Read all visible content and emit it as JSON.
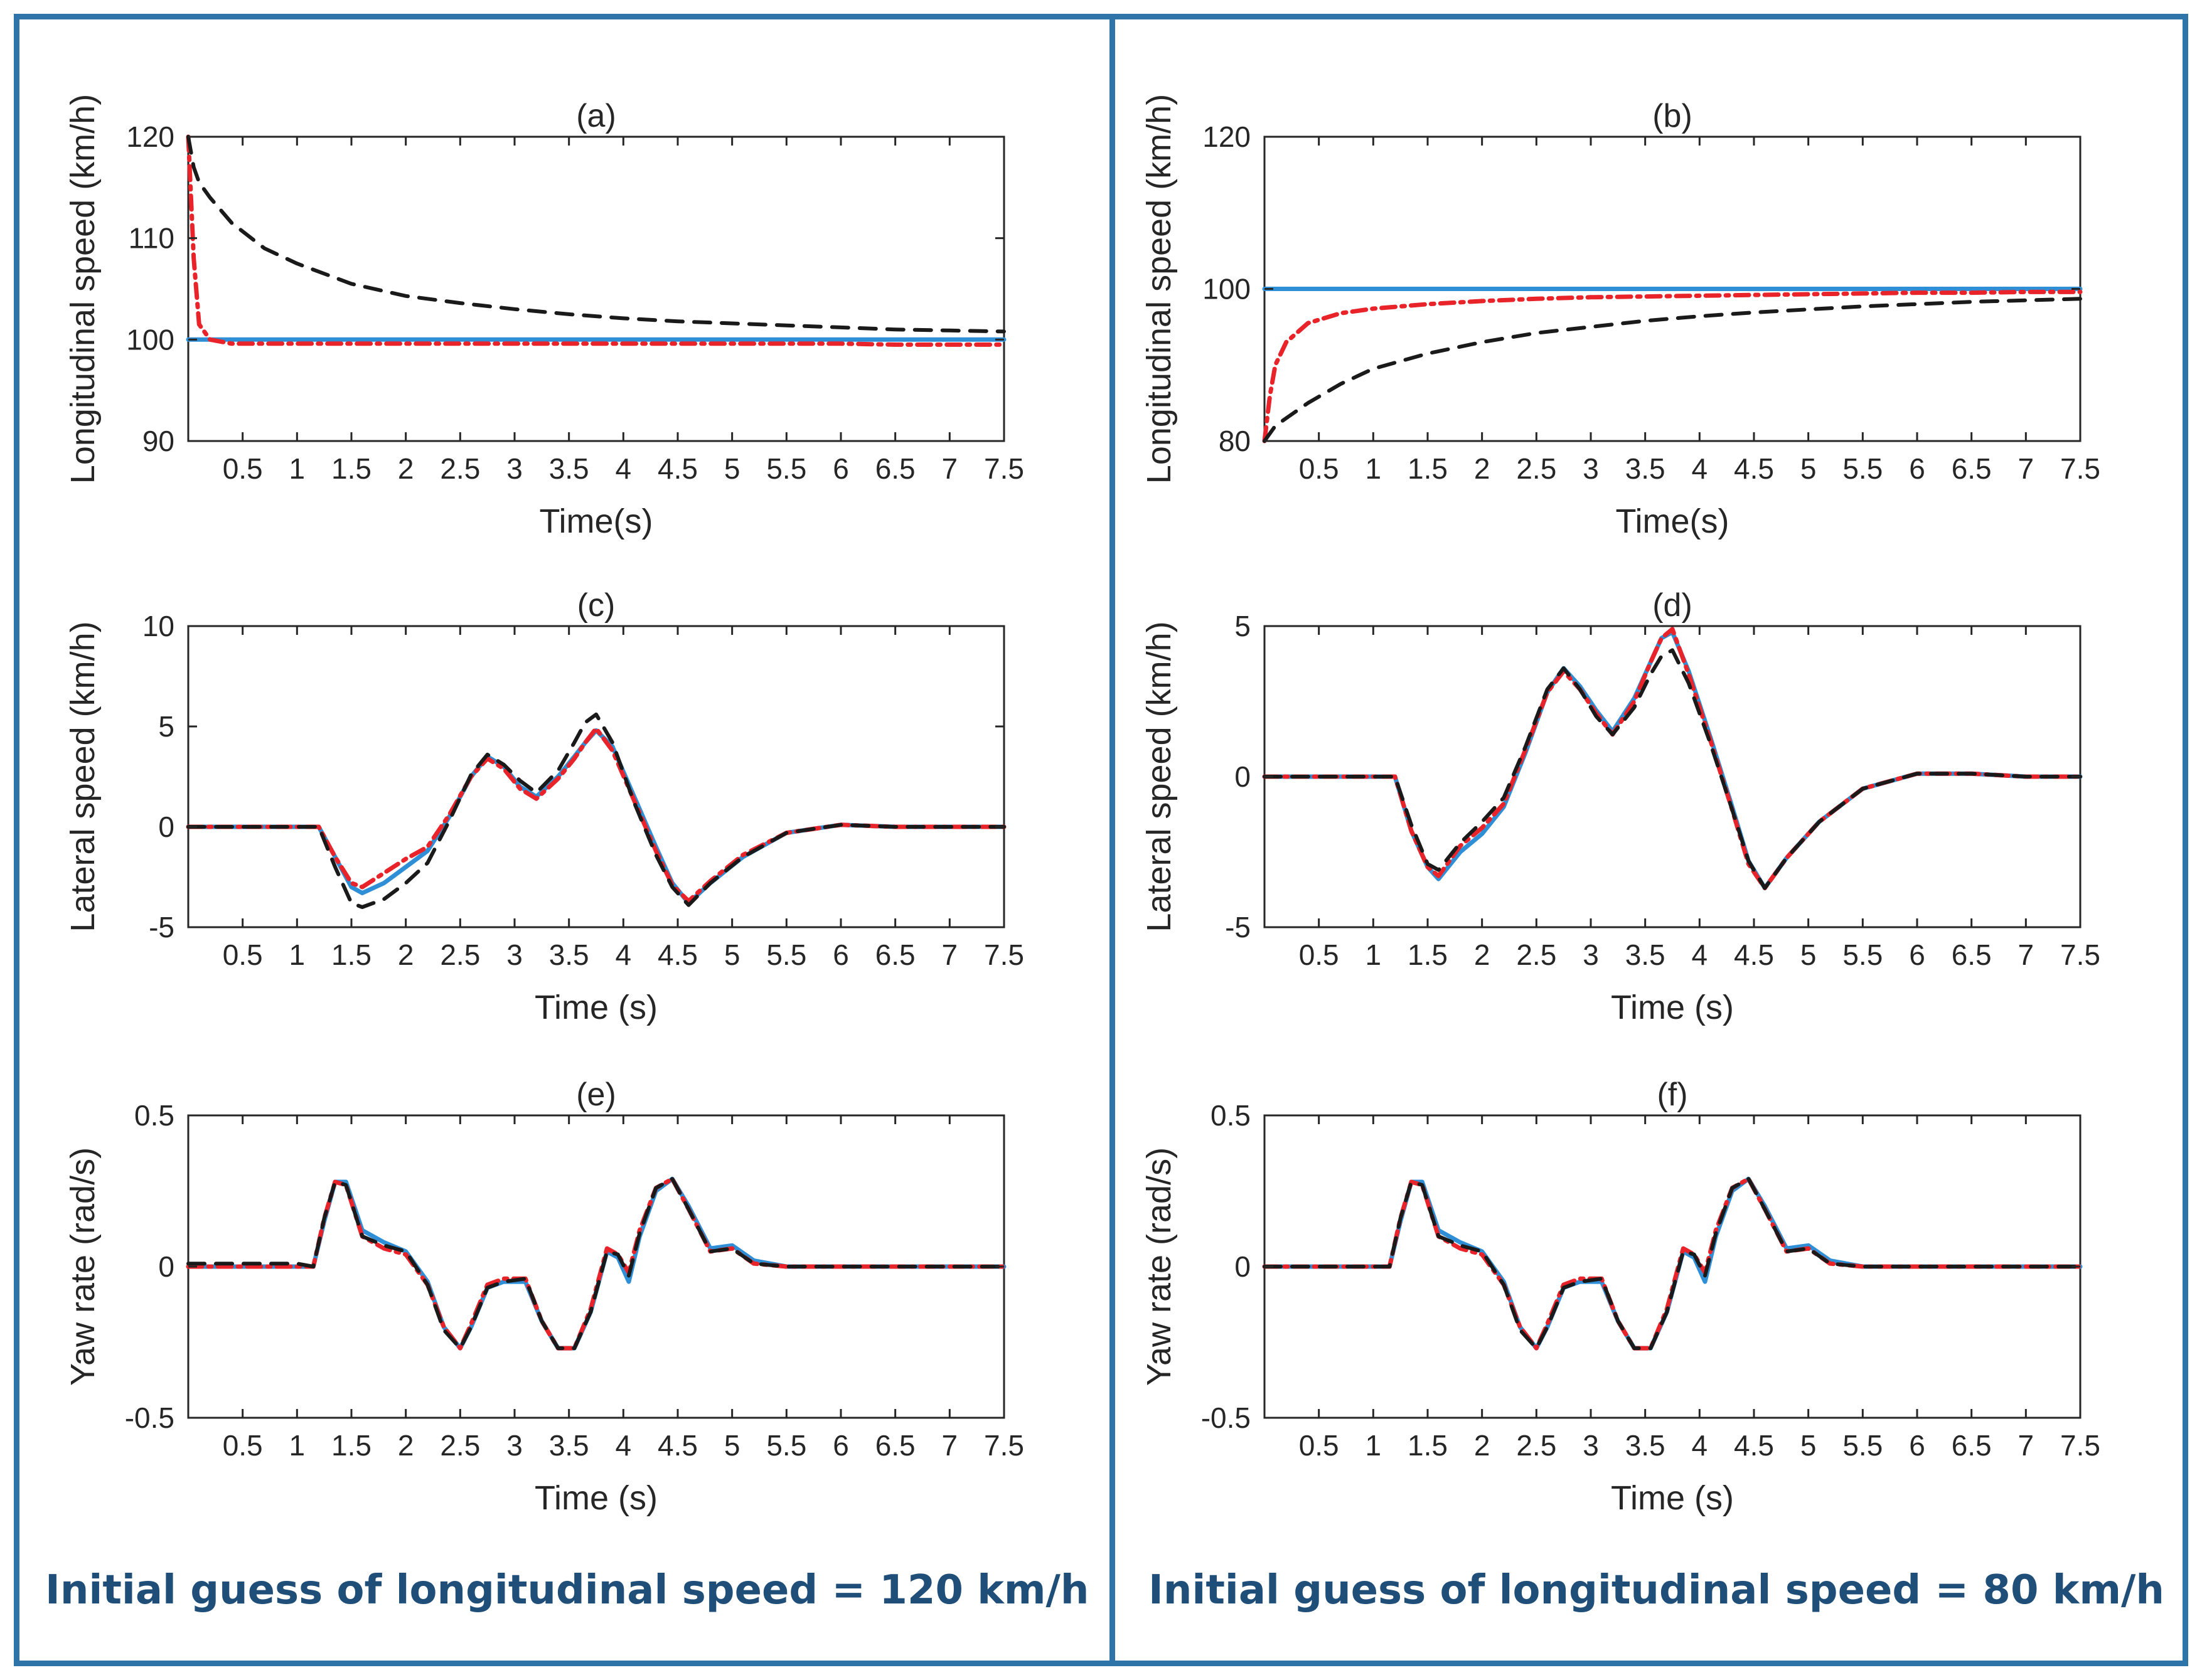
{
  "colors": {
    "frame": "#2e74a8",
    "true": "#2f8fd6",
    "ekf": "#e8232a",
    "est": "#1a1a1a",
    "caption": "#1f4e79"
  },
  "captions": {
    "left": "Initial guess of longitudinal speed = 120 km/h",
    "right": "Initial guess of longitudinal speed = 80 km/h"
  },
  "chart_data": [
    {
      "type": "line",
      "title": "(a)",
      "xlabel": "Time(s)",
      "ylabel": "Longitudinal speed (km/h)",
      "xlim": [
        0,
        7.5
      ],
      "ylim": [
        90,
        120
      ],
      "xticks": [
        "0.5",
        "1",
        "1.5",
        "2",
        "2.5",
        "3",
        "3.5",
        "4",
        "4.5",
        "5",
        "5.5",
        "6",
        "6.5",
        "7",
        "7.5"
      ],
      "yticks": [
        "90",
        "100",
        "110",
        "120"
      ],
      "x": [
        0,
        0.05,
        0.1,
        0.2,
        0.4,
        0.7,
        1,
        1.5,
        2,
        2.5,
        3,
        3.5,
        4,
        4.5,
        5,
        5.5,
        6,
        6.5,
        7,
        7.5
      ],
      "series": [
        {
          "name": "solid",
          "values": [
            100,
            100,
            100,
            100,
            100,
            100,
            100,
            100,
            100,
            100,
            100,
            100,
            100,
            100,
            100,
            100,
            100,
            100,
            100,
            100
          ]
        },
        {
          "name": "dash-dot",
          "values": [
            120,
            108,
            101.5,
            100,
            99.6,
            99.6,
            99.6,
            99.6,
            99.6,
            99.6,
            99.6,
            99.6,
            99.6,
            99.6,
            99.6,
            99.6,
            99.6,
            99.5,
            99.5,
            99.5
          ]
        },
        {
          "name": "dashed",
          "values": [
            120,
            117,
            115.5,
            114,
            111.5,
            109,
            107.5,
            105.5,
            104.3,
            103.6,
            103,
            102.5,
            102.1,
            101.8,
            101.6,
            101.4,
            101.2,
            101,
            100.9,
            100.8
          ]
        }
      ]
    },
    {
      "type": "line",
      "title": "(b)",
      "xlabel": "Time(s)",
      "ylabel": "Longitudinal speed (km/h)",
      "xlim": [
        0,
        7.5
      ],
      "ylim": [
        80,
        120
      ],
      "xticks": [
        "0.5",
        "1",
        "1.5",
        "2",
        "2.5",
        "3",
        "3.5",
        "4",
        "4.5",
        "5",
        "5.5",
        "6",
        "6.5",
        "7",
        "7.5"
      ],
      "yticks": [
        "80",
        "100",
        "120"
      ],
      "x": [
        0,
        0.05,
        0.1,
        0.2,
        0.4,
        0.7,
        1,
        1.5,
        2,
        2.5,
        3,
        3.5,
        4,
        4.5,
        5,
        5.5,
        6,
        6.5,
        7,
        7.5
      ],
      "series": [
        {
          "name": "solid",
          "values": [
            100,
            100,
            100,
            100,
            100,
            100,
            100,
            100,
            100,
            100,
            100,
            100,
            100,
            100,
            100,
            100,
            100,
            100,
            100,
            100
          ]
        },
        {
          "name": "dash-dot",
          "values": [
            80,
            86,
            90,
            93,
            95.5,
            96.8,
            97.4,
            98,
            98.4,
            98.7,
            98.9,
            99,
            99.1,
            99.2,
            99.3,
            99.4,
            99.5,
            99.5,
            99.6,
            99.6
          ]
        },
        {
          "name": "dashed",
          "values": [
            80,
            81,
            82,
            83,
            85,
            87.5,
            89.5,
            91.5,
            93,
            94.2,
            95,
            95.8,
            96.4,
            96.9,
            97.3,
            97.7,
            98,
            98.3,
            98.5,
            98.7
          ]
        }
      ]
    },
    {
      "type": "line",
      "title": "(c)",
      "xlabel": "Time (s)",
      "ylabel": "Lateral speed (km/h)",
      "xlim": [
        0,
        7.5
      ],
      "ylim": [
        -5,
        10
      ],
      "xticks": [
        "0.5",
        "1",
        "1.5",
        "2",
        "2.5",
        "3",
        "3.5",
        "4",
        "4.5",
        "5",
        "5.5",
        "6",
        "6.5",
        "7",
        "7.5"
      ],
      "yticks": [
        "-5",
        "0",
        "5",
        "10"
      ],
      "x": [
        0,
        0.5,
        1,
        1.2,
        1.35,
        1.5,
        1.6,
        1.8,
        2,
        2.2,
        2.4,
        2.6,
        2.75,
        2.9,
        3.05,
        3.2,
        3.4,
        3.55,
        3.65,
        3.75,
        3.9,
        4.1,
        4.3,
        4.45,
        4.6,
        4.8,
        5.1,
        5.5,
        6,
        6.5,
        7,
        7.5
      ],
      "series": [
        {
          "name": "solid",
          "values": [
            0,
            0,
            0,
            0,
            -1.5,
            -3,
            -3.3,
            -2.8,
            -2,
            -1.2,
            0.5,
            2.5,
            3.5,
            3,
            2,
            1.5,
            2.5,
            3.5,
            4.2,
            4.8,
            4,
            1.5,
            -1,
            -2.8,
            -3.8,
            -2.8,
            -1.5,
            -0.3,
            0.1,
            0,
            0,
            0
          ]
        },
        {
          "name": "dash-dot",
          "values": [
            0,
            0,
            0,
            0,
            -1.5,
            -2.8,
            -3,
            -2.3,
            -1.6,
            -1,
            0.6,
            2.5,
            3.4,
            2.9,
            1.9,
            1.4,
            2.4,
            3.4,
            4.2,
            4.9,
            3.8,
            1.3,
            -1.2,
            -2.9,
            -3.7,
            -2.7,
            -1.4,
            -0.3,
            0.1,
            0,
            0,
            0
          ]
        },
        {
          "name": "dashed",
          "values": [
            0,
            0,
            0,
            0,
            -2,
            -3.8,
            -4,
            -3.6,
            -2.8,
            -1.8,
            0.3,
            2.6,
            3.6,
            3.1,
            2.3,
            1.7,
            2.8,
            4.2,
            5.2,
            5.6,
            4.2,
            1.2,
            -1.4,
            -3,
            -3.9,
            -2.8,
            -1.5,
            -0.3,
            0.1,
            0,
            0,
            0
          ]
        }
      ]
    },
    {
      "type": "line",
      "title": "(d)",
      "xlabel": "Time (s)",
      "ylabel": "Lateral speed (km/h)",
      "xlim": [
        0,
        7.5
      ],
      "ylim": [
        -5,
        5
      ],
      "xticks": [
        "0.5",
        "1",
        "1.5",
        "2",
        "2.5",
        "3",
        "3.5",
        "4",
        "4.5",
        "5",
        "5.5",
        "6",
        "6.5",
        "7",
        "7.5"
      ],
      "yticks": [
        "-5",
        "0",
        "5"
      ],
      "x": [
        0,
        0.5,
        1,
        1.2,
        1.35,
        1.5,
        1.6,
        1.8,
        2,
        2.2,
        2.4,
        2.6,
        2.75,
        2.9,
        3.05,
        3.2,
        3.4,
        3.55,
        3.65,
        3.75,
        3.9,
        4.1,
        4.3,
        4.45,
        4.6,
        4.8,
        5.1,
        5.5,
        6,
        6.5,
        7,
        7.5
      ],
      "series": [
        {
          "name": "solid",
          "values": [
            0,
            0,
            0,
            0,
            -1.8,
            -3,
            -3.4,
            -2.5,
            -1.9,
            -1,
            0.8,
            2.8,
            3.6,
            3,
            2.2,
            1.5,
            2.6,
            3.8,
            4.6,
            4.8,
            3.5,
            1.3,
            -1,
            -2.8,
            -3.7,
            -2.7,
            -1.5,
            -0.4,
            0.1,
            0.1,
            0,
            0
          ]
        },
        {
          "name": "dash-dot",
          "values": [
            0,
            0,
            0,
            0,
            -1.8,
            -3,
            -3.3,
            -2.3,
            -1.7,
            -0.9,
            0.9,
            2.8,
            3.5,
            2.9,
            2.1,
            1.4,
            2.5,
            3.8,
            4.6,
            4.9,
            3.4,
            1.2,
            -1.1,
            -2.9,
            -3.7,
            -2.7,
            -1.5,
            -0.4,
            0.1,
            0.1,
            0,
            0
          ]
        },
        {
          "name": "dashed",
          "values": [
            0,
            0,
            0,
            0,
            -1.6,
            -2.9,
            -3.1,
            -2.2,
            -1.5,
            -0.7,
            1,
            2.9,
            3.6,
            2.9,
            2,
            1.4,
            2.3,
            3.4,
            4,
            4.2,
            3.1,
            1.1,
            -1.1,
            -2.8,
            -3.7,
            -2.7,
            -1.5,
            -0.4,
            0.1,
            0.1,
            0,
            0
          ]
        }
      ]
    },
    {
      "type": "line",
      "title": "(e)",
      "xlabel": "Time (s)",
      "ylabel": "Yaw rate (rad/s)",
      "xlim": [
        0,
        7.5
      ],
      "ylim": [
        -0.5,
        0.5
      ],
      "xticks": [
        "0.5",
        "1",
        "1.5",
        "2",
        "2.5",
        "3",
        "3.5",
        "4",
        "4.5",
        "5",
        "5.5",
        "6",
        "6.5",
        "7",
        "7.5"
      ],
      "yticks": [
        "-0.5",
        "0",
        "0.5"
      ],
      "x": [
        0,
        0.5,
        1,
        1.15,
        1.25,
        1.35,
        1.45,
        1.6,
        1.8,
        2,
        2.2,
        2.35,
        2.5,
        2.6,
        2.75,
        2.9,
        3.1,
        3.25,
        3.4,
        3.55,
        3.7,
        3.85,
        3.95,
        4.05,
        4.15,
        4.3,
        4.45,
        4.6,
        4.8,
        5,
        5.2,
        5.5,
        6,
        6.5,
        7,
        7.5
      ],
      "series": [
        {
          "name": "solid",
          "values": [
            0,
            0,
            0,
            0,
            0.15,
            0.28,
            0.28,
            0.12,
            0.08,
            0.05,
            -0.05,
            -0.2,
            -0.27,
            -0.2,
            -0.07,
            -0.05,
            -0.05,
            -0.18,
            -0.27,
            -0.27,
            -0.15,
            0.05,
            0.03,
            -0.05,
            0.1,
            0.25,
            0.29,
            0.2,
            0.06,
            0.07,
            0.02,
            0,
            0,
            0,
            0,
            0
          ]
        },
        {
          "name": "dash-dot",
          "values": [
            0,
            0,
            0,
            0,
            0.16,
            0.28,
            0.27,
            0.1,
            0.06,
            0.04,
            -0.06,
            -0.2,
            -0.27,
            -0.19,
            -0.06,
            -0.04,
            -0.04,
            -0.18,
            -0.27,
            -0.27,
            -0.14,
            0.06,
            0.04,
            -0.02,
            0.12,
            0.26,
            0.29,
            0.19,
            0.05,
            0.06,
            0.01,
            0,
            0,
            0,
            0,
            0
          ]
        },
        {
          "name": "dashed",
          "values": [
            0.01,
            0.01,
            0.01,
            0,
            0.16,
            0.28,
            0.27,
            0.1,
            0.07,
            0.05,
            -0.06,
            -0.21,
            -0.27,
            -0.2,
            -0.07,
            -0.05,
            -0.04,
            -0.18,
            -0.27,
            -0.27,
            -0.15,
            0.05,
            0.04,
            -0.03,
            0.11,
            0.26,
            0.29,
            0.19,
            0.05,
            0.06,
            0.01,
            0,
            0,
            0,
            0,
            0
          ]
        }
      ]
    },
    {
      "type": "line",
      "title": "(f)",
      "xlabel": "Time (s)",
      "ylabel": "Yaw rate (rad/s)",
      "xlim": [
        0,
        7.5
      ],
      "ylim": [
        -0.5,
        0.5
      ],
      "xticks": [
        "0.5",
        "1",
        "1.5",
        "2",
        "2.5",
        "3",
        "3.5",
        "4",
        "4.5",
        "5",
        "5.5",
        "6",
        "6.5",
        "7",
        "7.5"
      ],
      "yticks": [
        "-0.5",
        "0",
        "0.5"
      ],
      "x": [
        0,
        0.5,
        1,
        1.15,
        1.25,
        1.35,
        1.45,
        1.6,
        1.8,
        2,
        2.2,
        2.35,
        2.5,
        2.6,
        2.75,
        2.9,
        3.1,
        3.25,
        3.4,
        3.55,
        3.7,
        3.85,
        3.95,
        4.05,
        4.15,
        4.3,
        4.45,
        4.6,
        4.8,
        5,
        5.2,
        5.5,
        6,
        6.5,
        7,
        7.5
      ],
      "series": [
        {
          "name": "solid",
          "values": [
            0,
            0,
            0,
            0,
            0.15,
            0.28,
            0.28,
            0.12,
            0.08,
            0.05,
            -0.05,
            -0.2,
            -0.27,
            -0.2,
            -0.07,
            -0.05,
            -0.05,
            -0.18,
            -0.27,
            -0.27,
            -0.15,
            0.05,
            0.03,
            -0.05,
            0.1,
            0.25,
            0.29,
            0.2,
            0.06,
            0.07,
            0.02,
            0,
            0,
            0,
            0,
            0
          ]
        },
        {
          "name": "dash-dot",
          "values": [
            0,
            0,
            0,
            0,
            0.16,
            0.28,
            0.27,
            0.1,
            0.06,
            0.04,
            -0.06,
            -0.2,
            -0.27,
            -0.19,
            -0.06,
            -0.04,
            -0.04,
            -0.18,
            -0.27,
            -0.27,
            -0.14,
            0.06,
            0.04,
            -0.02,
            0.12,
            0.26,
            0.29,
            0.19,
            0.05,
            0.06,
            0.01,
            0,
            0,
            0,
            0,
            0
          ]
        },
        {
          "name": "dashed",
          "values": [
            0,
            0,
            0,
            0,
            0.16,
            0.28,
            0.27,
            0.1,
            0.07,
            0.05,
            -0.06,
            -0.21,
            -0.27,
            -0.2,
            -0.07,
            -0.05,
            -0.04,
            -0.18,
            -0.27,
            -0.27,
            -0.15,
            0.05,
            0.04,
            -0.03,
            0.11,
            0.26,
            0.29,
            0.19,
            0.05,
            0.06,
            0.01,
            0,
            0,
            0,
            0,
            0
          ]
        }
      ]
    }
  ]
}
